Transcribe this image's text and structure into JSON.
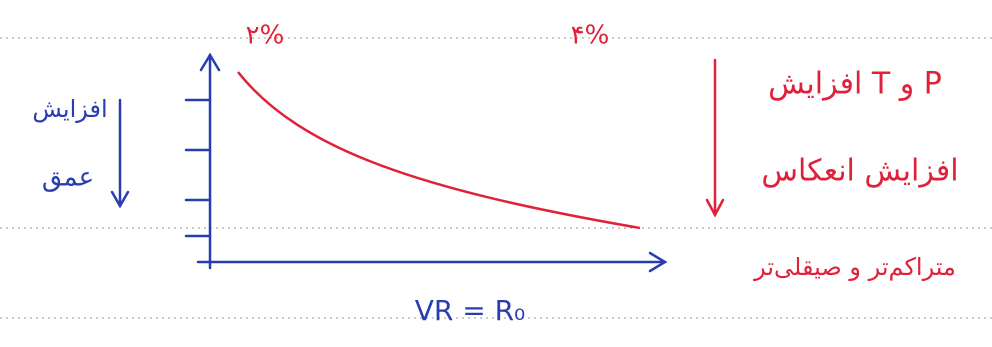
{
  "top_labels": {
    "left": "۲%",
    "right": "۴%"
  },
  "left_note": {
    "line1": "افزایش",
    "line2": "عمق"
  },
  "right_notes": {
    "line1": "افزایش T و P",
    "line2": "افزایش انعکاس",
    "line3": "متراکم‌تر و صیقلی‌تر"
  },
  "x_axis_label": "VR = R₀"
}
